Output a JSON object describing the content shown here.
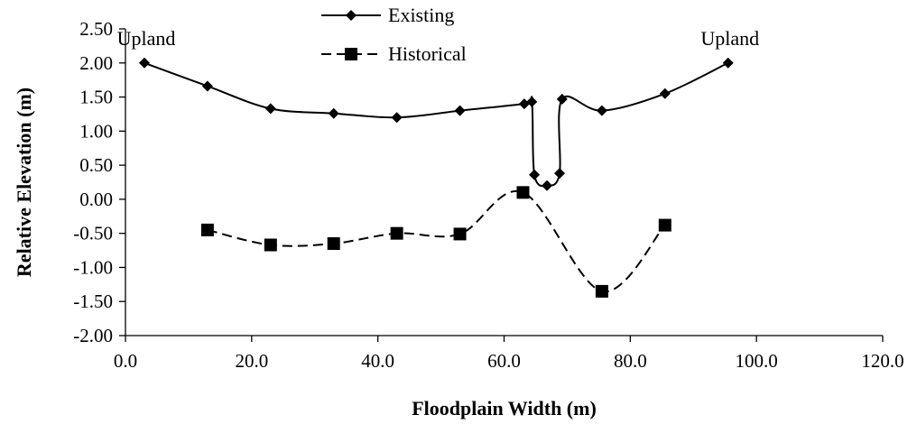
{
  "chart_data": {
    "type": "line",
    "xlabel": "Floodplain Width (m)",
    "ylabel": "Relative Elevation (m)",
    "xlim": [
      0,
      120
    ],
    "ylim": [
      -2,
      2.5
    ],
    "x_ticks": [
      "0.0",
      "20.0",
      "40.0",
      "60.0",
      "80.0",
      "100.0",
      "120.0"
    ],
    "y_ticks": [
      "2.50",
      "2.00",
      "1.50",
      "1.00",
      "0.50",
      "0.00",
      "-0.50",
      "-1.00",
      "-1.50",
      "-2.00"
    ],
    "grid": false,
    "legend_position": "top-center",
    "series": [
      {
        "name": "Existing",
        "marker": "diamond",
        "line_style": "solid",
        "color": "#000000",
        "points": [
          [
            3,
            2.0
          ],
          [
            13,
            1.66
          ],
          [
            23,
            1.33
          ],
          [
            33,
            1.26
          ],
          [
            43,
            1.2
          ],
          [
            53,
            1.3
          ],
          [
            63.2,
            1.4
          ],
          [
            64.4,
            1.43
          ],
          [
            64.8,
            0.36
          ],
          [
            66.8,
            0.2
          ],
          [
            68.8,
            0.38
          ],
          [
            69.2,
            1.47
          ],
          [
            75.5,
            1.3
          ],
          [
            85.5,
            1.55
          ],
          [
            95.5,
            2.0
          ]
        ]
      },
      {
        "name": "Historical",
        "marker": "square",
        "line_style": "dashed",
        "color": "#000000",
        "points": [
          [
            13,
            -0.45
          ],
          [
            23,
            -0.67
          ],
          [
            33,
            -0.65
          ],
          [
            43,
            -0.5
          ],
          [
            53,
            -0.51
          ],
          [
            63,
            0.1
          ],
          [
            75.5,
            -1.35
          ],
          [
            85.5,
            -0.38
          ]
        ]
      }
    ],
    "annotations": [
      {
        "text": "Upland",
        "x": 3,
        "y": 2.0
      },
      {
        "text": "Upland",
        "x": 95.5,
        "y": 2.0
      }
    ]
  }
}
